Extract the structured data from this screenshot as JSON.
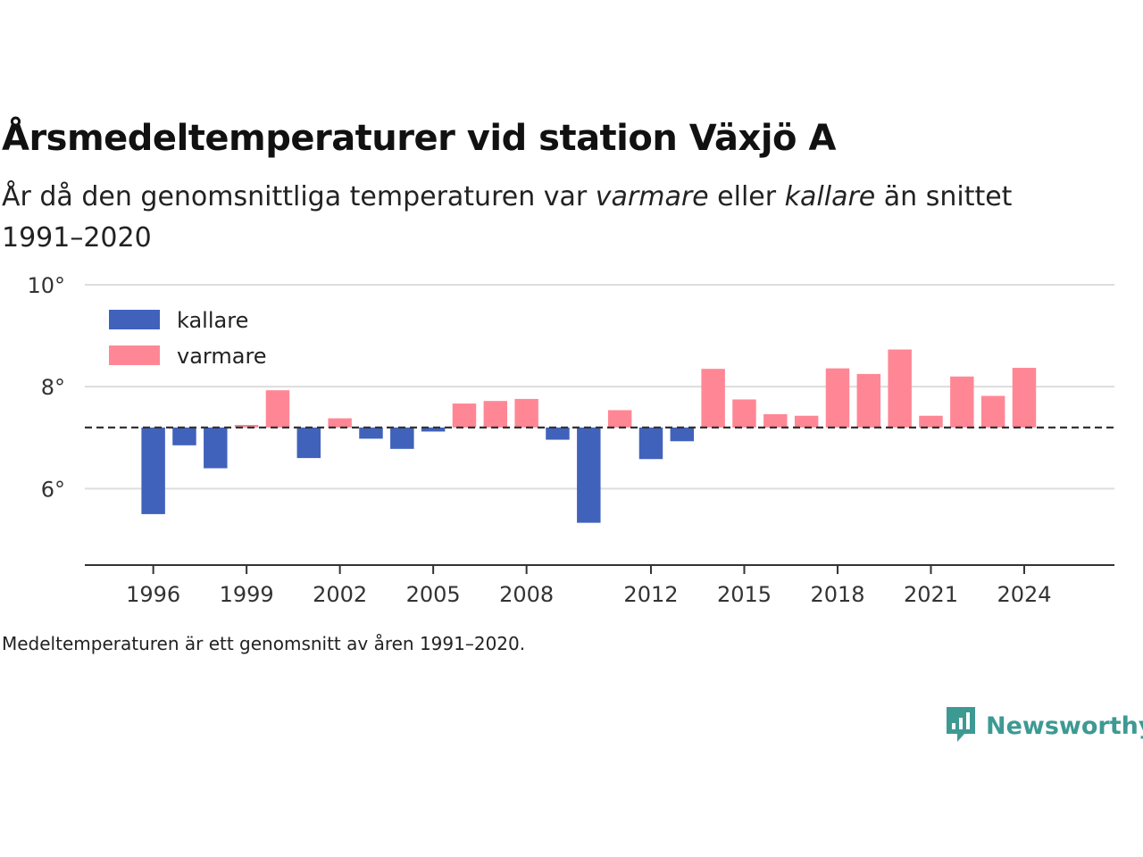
{
  "title": "Årsmedeltemperaturer vid station Växjö A",
  "subtitle": {
    "part1": "År då den genomsnittliga temperaturen var ",
    "warm": "varmare",
    "part2": " eller ",
    "cold": "kallare",
    "part3": " än snittet 1991–2020"
  },
  "footnote": "Medeltemperaturen är ett genomsnitt av åren 1991–2020.",
  "brand": {
    "name": "Newsworthy",
    "color": "#3d9a93",
    "icon": "newsworthy-logo-icon"
  },
  "chart_data": {
    "type": "bar",
    "baseline": 7.2,
    "ylim": [
      4.5,
      10
    ],
    "y_ticks": [
      6,
      8,
      10
    ],
    "y_tick_labels": [
      "6°",
      "8°",
      "10°"
    ],
    "x_ticks": [
      1996,
      1999,
      2002,
      2005,
      2008,
      2012,
      2015,
      2018,
      2021,
      2024
    ],
    "x_tick_labels": [
      "1996",
      "1999",
      "2002",
      "2005",
      "2008",
      "2012",
      "2015",
      "2018",
      "2021",
      "2024"
    ],
    "xlim": [
      1993.8,
      2026.9
    ],
    "grid": true,
    "legend": {
      "position": "top-left",
      "items": [
        {
          "label": "kallare",
          "color": "#4062bb"
        },
        {
          "label": "varmare",
          "color": "#ff8795"
        }
      ]
    },
    "colors": {
      "colder": "#4062bb",
      "warmer": "#ff8795"
    },
    "years": [
      1996,
      1997,
      1998,
      1999,
      2000,
      2001,
      2002,
      2003,
      2004,
      2005,
      2006,
      2007,
      2008,
      2009,
      2010,
      2011,
      2012,
      2013,
      2014,
      2015,
      2016,
      2017,
      2018,
      2019,
      2020,
      2021,
      2022,
      2023,
      2024
    ],
    "values": [
      5.5,
      6.85,
      6.4,
      7.25,
      7.93,
      6.6,
      7.38,
      6.98,
      6.78,
      7.12,
      7.67,
      7.72,
      7.76,
      6.96,
      5.33,
      7.54,
      6.58,
      6.93,
      8.35,
      7.75,
      7.46,
      7.43,
      8.36,
      8.25,
      8.73,
      7.43,
      8.2,
      7.82,
      8.37
    ]
  }
}
